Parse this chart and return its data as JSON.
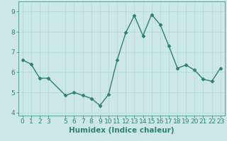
{
  "xlabel": "Humidex (Indice chaleur)",
  "x": [
    0,
    1,
    2,
    3,
    5,
    6,
    7,
    8,
    9,
    10,
    11,
    12,
    13,
    14,
    15,
    16,
    17,
    18,
    19,
    20,
    21,
    22,
    23
  ],
  "y": [
    6.6,
    6.4,
    5.7,
    5.7,
    4.85,
    5.0,
    4.85,
    4.7,
    4.35,
    4.9,
    6.6,
    7.95,
    8.8,
    7.8,
    8.85,
    8.35,
    7.3,
    6.2,
    6.35,
    6.1,
    5.65,
    5.55,
    6.2
  ],
  "ylim": [
    3.85,
    9.5
  ],
  "yticks": [
    4,
    5,
    6,
    7,
    8,
    9
  ],
  "xlim": [
    -0.5,
    23.5
  ],
  "xticks": [
    0,
    1,
    2,
    3,
    5,
    6,
    7,
    8,
    9,
    10,
    11,
    12,
    13,
    14,
    15,
    16,
    17,
    18,
    19,
    20,
    21,
    22,
    23
  ],
  "line_color": "#2d7f74",
  "marker": "D",
  "marker_size": 2.5,
  "bg_color": "#cde8e4",
  "grid_color": "#b0d8d4",
  "tick_color": "#2d7f74",
  "label_color": "#2d7f74",
  "xlabel_fontsize": 7.5,
  "tick_fontsize": 6.5,
  "linewidth": 1.0
}
